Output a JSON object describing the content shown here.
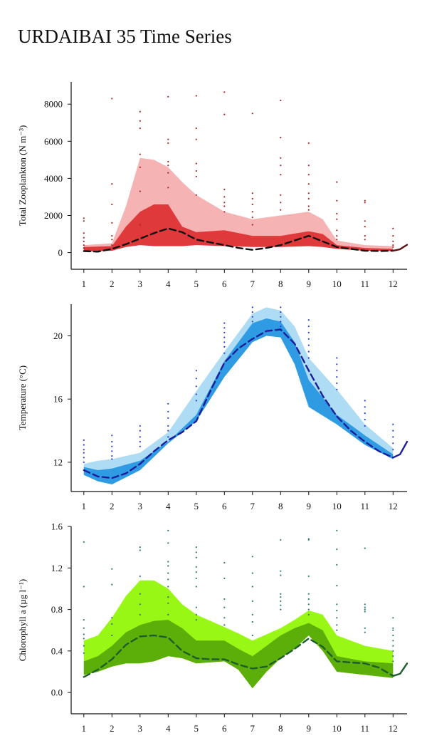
{
  "title": "URDAIBAI 35 Time Series",
  "chart_data": [
    {
      "type": "area",
      "ylabel": "Total Zooplankton (N m⁻³)",
      "xlabel": "",
      "x_ticks": [
        1,
        2,
        3,
        4,
        5,
        6,
        7,
        8,
        9,
        10,
        11,
        12
      ],
      "y_ticks": [
        0,
        2000,
        4000,
        6000,
        8000
      ],
      "y_tick_labels": [
        "0",
        "2000",
        "4000",
        "6000",
        "8000"
      ],
      "xlim": [
        0.55,
        12.5
      ],
      "ylim": [
        -900,
        9200
      ],
      "colors": {
        "outer": "#f5b3b3",
        "inner": "#e0393b",
        "median": "#111111",
        "points": "#a52a2a",
        "extension": "#5a1010"
      },
      "series": [
        {
          "role": "outer_band",
          "x": [
            1,
            2,
            2.5,
            3,
            3.5,
            4,
            4.5,
            5,
            6,
            7,
            8,
            9,
            9.5,
            10,
            11,
            12
          ],
          "low": [
            120,
            150,
            400,
            700,
            500,
            400,
            400,
            450,
            400,
            350,
            350,
            400,
            350,
            250,
            150,
            100
          ],
          "high": [
            400,
            500,
            2500,
            5100,
            5000,
            4600,
            3800,
            3100,
            2200,
            1800,
            2000,
            2200,
            1800,
            650,
            400,
            350
          ]
        },
        {
          "role": "inner_band",
          "x": [
            1,
            2,
            2.5,
            3,
            3.5,
            4,
            4.5,
            5,
            6,
            7,
            8,
            9,
            9.5,
            10,
            11,
            12
          ],
          "low": [
            50,
            100,
            300,
            400,
            350,
            350,
            350,
            400,
            350,
            300,
            300,
            350,
            300,
            200,
            100,
            80
          ],
          "high": [
            300,
            350,
            1400,
            2200,
            2600,
            2600,
            1400,
            1100,
            1200,
            900,
            900,
            1150,
            1000,
            400,
            250,
            200
          ]
        },
        {
          "role": "median",
          "x": [
            1,
            1.5,
            2,
            2.5,
            3,
            3.5,
            4,
            4.5,
            5,
            5.5,
            6,
            6.5,
            7,
            7.5,
            8,
            8.5,
            9,
            9.5,
            10,
            10.5,
            11,
            11.5,
            12
          ],
          "y": [
            80,
            50,
            200,
            450,
            750,
            1050,
            1300,
            1100,
            700,
            550,
            400,
            250,
            150,
            250,
            400,
            650,
            900,
            600,
            300,
            200,
            100,
            80,
            100
          ]
        },
        {
          "role": "extension",
          "x": [
            12,
            12.25,
            12.5
          ],
          "y": [
            100,
            180,
            420
          ]
        }
      ],
      "points": [
        {
          "x": 1,
          "y": [
            1850,
            1700,
            1050,
            800,
            600,
            400,
            250
          ]
        },
        {
          "x": 2,
          "y": [
            8300,
            3700,
            2600,
            1600,
            900,
            700,
            400
          ]
        },
        {
          "x": 3,
          "y": [
            7600,
            7100,
            6700,
            5300,
            4600,
            3300,
            1500
          ]
        },
        {
          "x": 4,
          "y": [
            8400,
            6100,
            5900,
            4900,
            4700,
            4300,
            3500
          ]
        },
        {
          "x": 5,
          "y": [
            8450,
            6700,
            6100,
            4800,
            4400,
            4100,
            3100
          ]
        },
        {
          "x": 6,
          "y": [
            8650,
            7450,
            3400,
            3000,
            2700,
            2500,
            2200
          ]
        },
        {
          "x": 7,
          "y": [
            7500,
            3200,
            2900,
            2600,
            2200,
            1900,
            1500
          ]
        },
        {
          "x": 8,
          "y": [
            8200,
            6200,
            5100,
            4700,
            4200,
            3100,
            2700,
            2300
          ]
        },
        {
          "x": 9,
          "y": [
            5900,
            4700,
            4200,
            3700,
            3200,
            2900,
            2500,
            2300
          ]
        },
        {
          "x": 10,
          "y": [
            3800,
            2800,
            2100,
            1800,
            1200,
            900,
            700
          ]
        },
        {
          "x": 11,
          "y": [
            2800,
            2700,
            1700,
            1400,
            900,
            700
          ]
        },
        {
          "x": 12,
          "y": [
            1300,
            900,
            600,
            400,
            300
          ]
        }
      ]
    },
    {
      "type": "area",
      "ylabel": "Temperature (°C)",
      "xlabel": "",
      "x_ticks": [
        1,
        2,
        3,
        4,
        5,
        6,
        7,
        8,
        9,
        10,
        11,
        12
      ],
      "y_ticks": [
        12,
        16,
        20
      ],
      "y_tick_labels": [
        "12",
        "16",
        "20"
      ],
      "xlim": [
        0.55,
        12.5
      ],
      "ylim": [
        10.15,
        22.0
      ],
      "colors": {
        "outer": "#aedcf5",
        "inner": "#2f9be3",
        "median": "#1c1e9c",
        "points": "#2a3de0",
        "extension": "#1c1e9c"
      },
      "series": [
        {
          "role": "outer_band",
          "x": [
            1,
            1.5,
            2,
            3,
            4,
            5,
            6,
            7,
            7.5,
            8,
            8.5,
            9,
            10,
            11,
            12
          ],
          "low": [
            11.2,
            10.8,
            10.6,
            11.5,
            13.2,
            14.6,
            17.4,
            19.6,
            20.0,
            19.9,
            18.2,
            15.5,
            14.4,
            13.1,
            12.2
          ],
          "high": [
            11.9,
            12.1,
            12.2,
            12.6,
            13.9,
            16.5,
            19.0,
            21.4,
            21.8,
            21.6,
            20.6,
            18.6,
            16.6,
            14.4,
            12.9
          ]
        },
        {
          "role": "inner_band",
          "x": [
            1,
            1.5,
            2,
            3,
            4,
            5,
            6,
            7,
            7.5,
            8,
            8.5,
            9,
            10,
            11,
            12
          ],
          "low": [
            11.2,
            10.8,
            10.6,
            11.5,
            13.2,
            14.6,
            17.4,
            19.6,
            20.0,
            19.9,
            18.2,
            15.5,
            14.4,
            13.1,
            12.2
          ],
          "high": [
            11.7,
            11.5,
            11.6,
            12.1,
            13.3,
            15.0,
            18.4,
            20.8,
            21.1,
            20.9,
            19.6,
            17.2,
            15.0,
            13.7,
            12.5
          ]
        },
        {
          "role": "median",
          "x": [
            1,
            1.5,
            2,
            2.5,
            3,
            3.5,
            4,
            4.5,
            5,
            5.5,
            6,
            6.5,
            7,
            7.5,
            8,
            8.5,
            9,
            9.5,
            10,
            10.5,
            11,
            11.5,
            12
          ],
          "y": [
            11.5,
            11.1,
            11.0,
            11.3,
            11.9,
            12.7,
            13.4,
            13.9,
            14.6,
            16.5,
            18.3,
            19.2,
            19.8,
            20.3,
            20.4,
            19.5,
            17.8,
            16.2,
            14.9,
            14.0,
            13.3,
            12.7,
            12.3
          ]
        },
        {
          "role": "extension",
          "x": [
            12,
            12.25,
            12.5
          ],
          "y": [
            12.3,
            12.5,
            13.3
          ]
        }
      ],
      "points": [
        {
          "x": 1,
          "y": [
            13.4,
            13.1,
            12.8,
            12.6,
            12.3,
            12.0
          ]
        },
        {
          "x": 2,
          "y": [
            13.7,
            13.3,
            13.0,
            12.7,
            12.4,
            12.2
          ]
        },
        {
          "x": 3,
          "y": [
            14.3,
            14.0,
            13.6,
            13.3,
            13.0
          ]
        },
        {
          "x": 4,
          "y": [
            15.7,
            15.2,
            14.8,
            14.3,
            14.0,
            13.6
          ]
        },
        {
          "x": 5,
          "y": [
            17.8,
            17.3,
            16.8,
            16.3,
            15.9
          ]
        },
        {
          "x": 6,
          "y": [
            20.8,
            20.5,
            20.2,
            19.9,
            19.6,
            19.3,
            18.9
          ]
        },
        {
          "x": 7,
          "y": [
            21.8,
            21.5,
            21.2,
            20.9
          ]
        },
        {
          "x": 8,
          "y": [
            21.8,
            21.5,
            21.2,
            20.9,
            20.6
          ]
        },
        {
          "x": 9,
          "y": [
            21.0,
            20.6,
            20.2,
            19.8,
            19.4,
            19.0,
            18.6
          ]
        },
        {
          "x": 10,
          "y": [
            18.6,
            18.2,
            17.8,
            17.4,
            17.0,
            16.6
          ]
        },
        {
          "x": 11,
          "y": [
            15.9,
            15.5,
            15.1,
            14.7,
            14.3
          ]
        },
        {
          "x": 12,
          "y": [
            14.4,
            14.0,
            13.6,
            13.2,
            12.8
          ]
        }
      ]
    },
    {
      "type": "area",
      "ylabel": "Chlorophyll a (µg l⁻¹)",
      "xlabel": "",
      "x_ticks": [
        1,
        2,
        3,
        4,
        5,
        6,
        7,
        8,
        9,
        10,
        11,
        12
      ],
      "y_ticks": [
        0.0,
        0.4,
        0.8,
        1.2,
        1.6
      ],
      "y_tick_labels": [
        "0.0",
        "0.4",
        "0.8",
        "1.2",
        "1.6"
      ],
      "xlim": [
        0.55,
        12.5
      ],
      "ylim": [
        -0.205,
        1.6
      ],
      "colors": {
        "outer": "#99f716",
        "inner": "#5cae08",
        "median": "#1d5e2c",
        "points": "#2f7a74",
        "extension": "#1d5e2c"
      },
      "series": [
        {
          "role": "outer_band",
          "x": [
            1,
            1.5,
            2,
            2.5,
            3,
            3.5,
            4,
            4.5,
            5,
            6,
            6.5,
            7,
            7.5,
            8,
            8.5,
            9,
            9.5,
            10,
            11,
            12
          ],
          "low": [
            0.17,
            0.2,
            0.25,
            0.28,
            0.28,
            0.3,
            0.35,
            0.33,
            0.28,
            0.3,
            0.22,
            0.04,
            0.2,
            0.33,
            0.42,
            0.55,
            0.4,
            0.2,
            0.17,
            0.14
          ],
          "high": [
            0.5,
            0.55,
            0.72,
            0.93,
            1.08,
            1.08,
            1.0,
            0.85,
            0.75,
            0.63,
            0.57,
            0.5,
            0.56,
            0.62,
            0.7,
            0.79,
            0.75,
            0.55,
            0.45,
            0.4
          ]
        },
        {
          "role": "inner_band",
          "x": [
            1,
            1.5,
            2,
            2.5,
            3,
            3.5,
            4,
            4.5,
            5,
            6,
            6.5,
            7,
            7.5,
            8,
            8.5,
            9,
            9.5,
            10,
            11,
            12
          ],
          "low": [
            0.17,
            0.2,
            0.25,
            0.28,
            0.28,
            0.3,
            0.35,
            0.33,
            0.28,
            0.3,
            0.22,
            0.04,
            0.2,
            0.33,
            0.42,
            0.55,
            0.4,
            0.2,
            0.17,
            0.14
          ],
          "high": [
            0.3,
            0.35,
            0.45,
            0.58,
            0.65,
            0.69,
            0.7,
            0.62,
            0.5,
            0.5,
            0.42,
            0.35,
            0.45,
            0.55,
            0.62,
            0.67,
            0.6,
            0.35,
            0.3,
            0.28
          ]
        },
        {
          "role": "median",
          "x": [
            1,
            1.5,
            2,
            2.5,
            3,
            3.5,
            4,
            4.5,
            5,
            5.5,
            6,
            6.5,
            7,
            7.5,
            8,
            8.5,
            9,
            9.5,
            10,
            10.5,
            11,
            11.5,
            12
          ],
          "y": [
            0.15,
            0.22,
            0.32,
            0.46,
            0.54,
            0.55,
            0.53,
            0.4,
            0.33,
            0.32,
            0.32,
            0.27,
            0.23,
            0.25,
            0.33,
            0.42,
            0.52,
            0.44,
            0.3,
            0.29,
            0.28,
            0.24,
            0.16
          ]
        },
        {
          "role": "extension",
          "x": [
            12,
            12.25,
            12.5
          ],
          "y": [
            0.16,
            0.18,
            0.28
          ]
        }
      ],
      "points": [
        {
          "x": 1,
          "y": [
            1.45,
            1.02,
            0.7,
            0.62,
            0.56,
            0.52,
            0.45,
            0.38
          ]
        },
        {
          "x": 2,
          "y": [
            1.19,
            1.04,
            0.72,
            0.66,
            0.55
          ]
        },
        {
          "x": 3,
          "y": [
            1.4,
            1.37,
            1.12,
            0.95,
            0.85,
            0.75
          ]
        },
        {
          "x": 4,
          "y": [
            1.56,
            1.44,
            1.26,
            1.22,
            1.15,
            1.09,
            1.02,
            0.92,
            0.86,
            0.75
          ]
        },
        {
          "x": 5,
          "y": [
            1.4,
            1.35,
            1.3,
            1.21,
            1.16,
            1.1,
            1.02,
            0.82,
            0.75,
            0.7
          ]
        },
        {
          "x": 6,
          "y": [
            1.25,
            1.1,
            0.9,
            0.82,
            0.72,
            0.65
          ]
        },
        {
          "x": 7,
          "y": [
            1.31,
            1.15,
            1.02,
            0.88,
            0.75,
            0.68,
            0.55
          ]
        },
        {
          "x": 8,
          "y": [
            1.47,
            1.17,
            1.13,
            0.95,
            0.92,
            0.88,
            0.84,
            0.8
          ]
        },
        {
          "x": 9,
          "y": [
            1.48,
            1.47,
            1.12,
            0.95,
            0.9,
            0.85,
            0.8,
            0.75
          ]
        },
        {
          "x": 10,
          "y": [
            1.56,
            1.38,
            1.23,
            1.03,
            0.85,
            0.79,
            0.72,
            0.65,
            0.6
          ]
        },
        {
          "x": 11,
          "y": [
            1.39,
            0.85,
            0.82,
            0.8,
            0.78,
            0.62,
            0.58
          ]
        },
        {
          "x": 12,
          "y": [
            0.72,
            0.62,
            0.6,
            0.55,
            0.5,
            0.45,
            0.4,
            0.35,
            0.3
          ]
        }
      ]
    }
  ]
}
